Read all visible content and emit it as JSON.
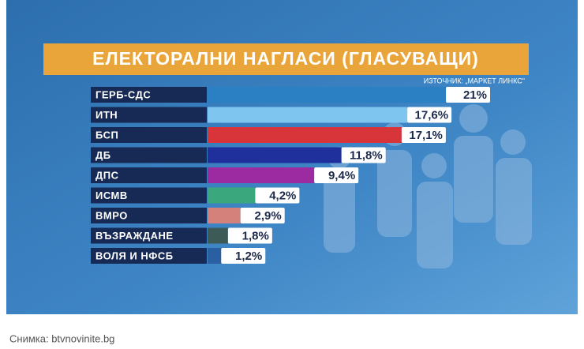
{
  "chart_data": {
    "type": "bar",
    "orientation": "horizontal",
    "title": "ЕЛЕКТОРАЛНИ НАГЛАСИ (ГЛАСУВАЩИ)",
    "source": "ИЗТОЧНИК: „МАРКЕТ ЛИНКС\"",
    "categories": [
      "ГЕРБ-СДС",
      "ИТН",
      "БСП",
      "ДБ",
      "ДПС",
      "ИСМВ",
      "ВМРО",
      "ВЪЗРАЖДАНЕ",
      "ВОЛЯ И НФСБ"
    ],
    "values": [
      21,
      17.6,
      17.1,
      11.8,
      9.4,
      4.2,
      2.9,
      1.8,
      1.2
    ],
    "value_labels": [
      "21%",
      "17,6%",
      "17,1%",
      "11,8%",
      "9,4%",
      "4,2%",
      "2,9%",
      "1,8%",
      "1,2%"
    ],
    "colors": [
      "#2b80c4",
      "#7ec6f0",
      "#d8353b",
      "#1f2f9c",
      "#9c2aa0",
      "#3aa87c",
      "#d4817b",
      "#3e5a56",
      "#2a5fa2"
    ]
  },
  "caption": "Снимка: btvnovinite.bg"
}
